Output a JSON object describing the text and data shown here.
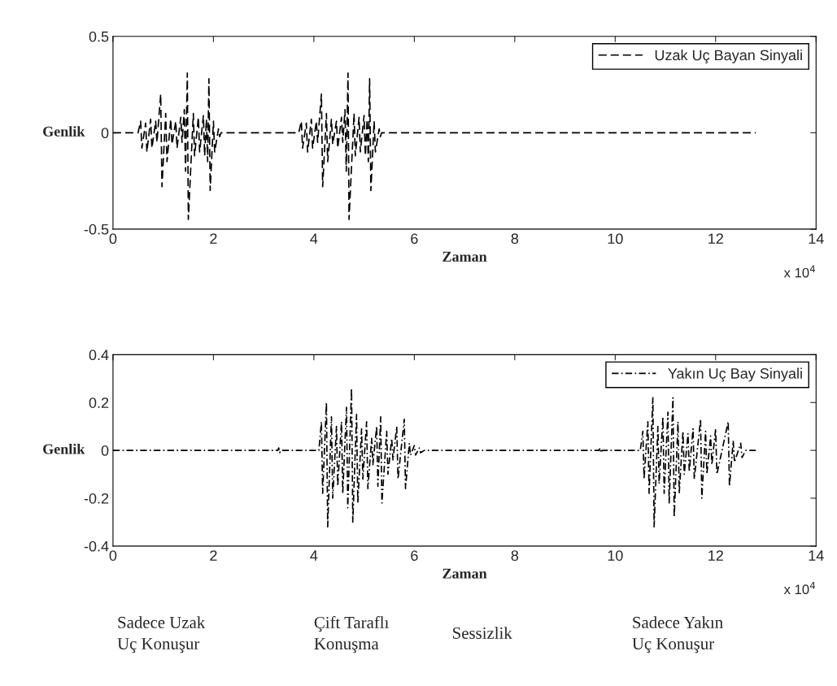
{
  "chart_data": [
    {
      "type": "line",
      "xlabel": "Zaman",
      "ylabel": "Genlik",
      "xlim": [
        0,
        14
      ],
      "xticks": [
        0,
        2,
        4,
        6,
        8,
        10,
        12,
        14
      ],
      "ylim": [
        -0.5,
        0.5
      ],
      "yticks": [
        -0.5,
        0,
        0.5
      ],
      "grid": false,
      "legend": "top right",
      "line_style": "dashed",
      "series": [
        {
          "name": "Uzak Uç Bayan Sinyali",
          "color": "#000000",
          "x": [
            0,
            0.5,
            0.55,
            0.575,
            0.65,
            0.675,
            0.75,
            0.775,
            0.85,
            0.875,
            0.95,
            0.975,
            1.05,
            1.075,
            1.15,
            1.175,
            1.25,
            1.275,
            1.35,
            1.375,
            1.42,
            1.445,
            1.48,
            1.5,
            1.6,
            1.625,
            1.7,
            1.725,
            1.8,
            1.825,
            1.86,
            1.885,
            1.91,
            1.935,
            2.0,
            2.025,
            2.1,
            2.125,
            2.15,
            3.7,
            3.75,
            3.775,
            3.85,
            3.875,
            3.95,
            3.975,
            4.05,
            4.075,
            4.15,
            4.175,
            4.25,
            4.275,
            4.35,
            4.375,
            4.45,
            4.475,
            4.55,
            4.575,
            4.62,
            4.645,
            4.68,
            4.7,
            4.8,
            4.825,
            4.9,
            4.925,
            5.0,
            5.025,
            5.06,
            5.085,
            5.11,
            5.135,
            5.2,
            5.225,
            5.3,
            5.325,
            5.35,
            12.8
          ],
          "values": [
            0,
            0,
            0.06,
            -0.08,
            0.05,
            -0.1,
            0.07,
            -0.08,
            0.06,
            -0.05,
            0.2,
            -0.28,
            0.1,
            -0.15,
            0.07,
            -0.06,
            0.06,
            -0.08,
            0.08,
            -0.05,
            0.12,
            -0.2,
            0.31,
            -0.45,
            0.1,
            -0.12,
            0.08,
            -0.1,
            0.09,
            -0.12,
            0.07,
            -0.15,
            0.28,
            -0.3,
            0.06,
            -0.1,
            0.02,
            -0.02,
            0,
            0,
            0.06,
            -0.08,
            0.05,
            -0.1,
            0.07,
            -0.08,
            0.06,
            -0.05,
            0.2,
            -0.28,
            0.1,
            -0.15,
            0.07,
            -0.06,
            0.06,
            -0.08,
            0.08,
            -0.05,
            0.12,
            -0.2,
            0.31,
            -0.45,
            0.1,
            -0.12,
            0.08,
            -0.1,
            0.09,
            -0.12,
            0.07,
            -0.15,
            0.28,
            -0.3,
            0.06,
            -0.1,
            0.02,
            -0.02,
            0,
            0
          ]
        }
      ],
      "annotations": [
        "x 10$^{4}$"
      ]
    },
    {
      "type": "line",
      "xlabel": "Zaman",
      "ylabel": "Genlik",
      "xlim": [
        0,
        14
      ],
      "xticks": [
        0,
        2,
        4,
        6,
        8,
        10,
        12,
        14
      ],
      "ylim": [
        -0.4,
        0.4
      ],
      "yticks": [
        -0.4,
        -0.2,
        0,
        0.2,
        0.4
      ],
      "grid": false,
      "legend": "top right",
      "line_style": "dashdot",
      "series": [
        {
          "name": "Yakın Uç Bay Sinyali",
          "color": "#000000",
          "x": [
            0,
            3.28,
            3.3,
            3.32,
            3.34,
            4.1,
            4.15,
            4.175,
            4.25,
            4.275,
            4.35,
            4.375,
            4.45,
            4.475,
            4.55,
            4.575,
            4.65,
            4.675,
            4.75,
            4.775,
            4.85,
            4.875,
            4.95,
            4.975,
            5.05,
            5.075,
            5.15,
            5.175,
            5.25,
            5.275,
            5.33,
            5.355,
            5.45,
            5.475,
            5.55,
            5.575,
            5.65,
            5.675,
            5.8,
            5.825,
            5.9,
            5.925,
            6.0,
            6.025,
            6.1,
            6.125,
            6.2,
            9.68,
            9.7,
            9.72,
            9.74,
            10.5,
            10.55,
            10.575,
            10.65,
            10.675,
            10.75,
            10.775,
            10.85,
            10.875,
            10.95,
            10.975,
            11.05,
            11.075,
            11.15,
            11.175,
            11.25,
            11.275,
            11.35,
            11.375,
            11.45,
            11.475,
            11.55,
            11.575,
            11.7,
            11.725,
            11.8,
            11.825,
            11.9,
            11.925,
            12.0,
            12.025,
            12.25,
            12.275,
            12.35,
            12.375,
            12.5,
            12.525,
            12.6,
            12.8
          ],
          "values": [
            0,
            0,
            0.01,
            -0.01,
            0,
            0,
            0.12,
            -0.18,
            0.2,
            -0.32,
            0.14,
            -0.2,
            0.1,
            -0.15,
            0.12,
            -0.18,
            0.18,
            -0.24,
            0.26,
            -0.3,
            0.15,
            -0.22,
            0.09,
            -0.12,
            0.12,
            -0.16,
            0.05,
            -0.06,
            0.1,
            -0.15,
            0.14,
            -0.22,
            0.08,
            -0.1,
            0.05,
            -0.04,
            0.1,
            -0.12,
            0.13,
            -0.16,
            0.03,
            -0.02,
            0.02,
            -0.02,
            0.01,
            -0.01,
            0,
            0,
            0.01,
            -0.01,
            0,
            0,
            0.08,
            -0.12,
            0.12,
            -0.18,
            0.22,
            -0.32,
            0.1,
            -0.14,
            0.14,
            -0.18,
            0.16,
            -0.22,
            0.22,
            -0.28,
            0.12,
            -0.18,
            0.08,
            -0.1,
            0.07,
            -0.09,
            0.09,
            -0.12,
            0.13,
            -0.2,
            0.08,
            -0.1,
            0.06,
            -0.06,
            0.09,
            -0.1,
            0.12,
            -0.15,
            0.04,
            -0.05,
            0.03,
            -0.03,
            0,
            0
          ]
        }
      ],
      "annotations": [
        "x 10$^{4}$",
        "Sadece Uzak\nUç Konuşur",
        "Çift Taraflı\nKonuşma",
        "Sessizlik",
        "Sadece Yakın\nUç Konuşur"
      ]
    }
  ]
}
